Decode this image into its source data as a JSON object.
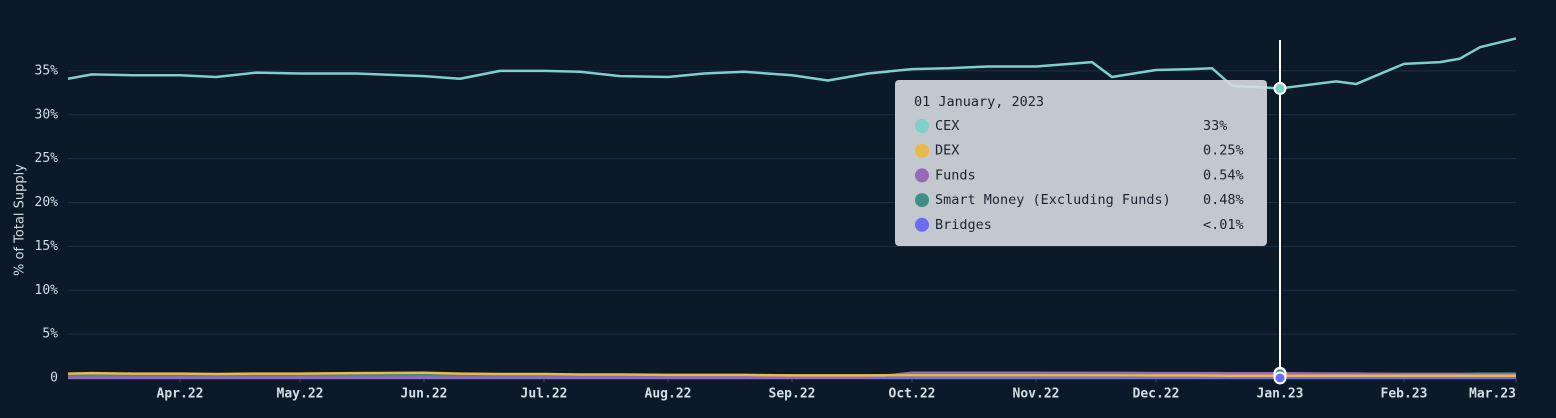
{
  "chart_data": {
    "type": "line",
    "y_label": "% of Total Supply",
    "x": [
      "2022-03-04",
      "2022-03-10",
      "2022-03-20",
      "2022-04-01",
      "2022-04-10",
      "2022-04-20",
      "2022-05-01",
      "2022-05-15",
      "2022-06-01",
      "2022-06-10",
      "2022-06-20",
      "2022-07-01",
      "2022-07-10",
      "2022-07-20",
      "2022-08-01",
      "2022-08-10",
      "2022-08-20",
      "2022-09-01",
      "2022-09-10",
      "2022-09-20",
      "2022-10-01",
      "2022-10-10",
      "2022-10-20",
      "2022-11-01",
      "2022-11-15",
      "2022-11-20",
      "2022-12-01",
      "2022-12-10",
      "2022-12-15",
      "2022-12-20",
      "2023-01-01",
      "2023-01-15",
      "2023-01-20",
      "2023-02-01",
      "2023-02-10",
      "2023-02-15",
      "2023-02-20",
      "2023-03-01"
    ],
    "series": [
      {
        "name": "CEX",
        "color": "#7fcfcc",
        "values": [
          34.1,
          34.6,
          34.5,
          34.5,
          34.3,
          34.8,
          34.7,
          34.7,
          34.4,
          34.1,
          35.0,
          35.0,
          34.9,
          34.4,
          34.3,
          34.7,
          34.9,
          34.5,
          33.9,
          34.7,
          35.2,
          35.3,
          35.5,
          35.5,
          36.0,
          34.3,
          35.1,
          35.2,
          35.3,
          33.3,
          33.0,
          33.8,
          33.5,
          35.8,
          36.0,
          36.4,
          37.7,
          38.7
        ]
      },
      {
        "name": "DEX",
        "color": "#e9b949",
        "values": [
          0.5,
          0.55,
          0.5,
          0.5,
          0.45,
          0.5,
          0.5,
          0.55,
          0.6,
          0.5,
          0.45,
          0.45,
          0.4,
          0.4,
          0.35,
          0.35,
          0.35,
          0.3,
          0.3,
          0.3,
          0.3,
          0.3,
          0.3,
          0.3,
          0.3,
          0.3,
          0.28,
          0.28,
          0.27,
          0.26,
          0.25,
          0.25,
          0.25,
          0.25,
          0.25,
          0.25,
          0.25,
          0.25
        ]
      },
      {
        "name": "Funds",
        "color": "#9a68b8",
        "values": [
          0.05,
          0.05,
          0.05,
          0.05,
          0.05,
          0.05,
          0.05,
          0.05,
          0.05,
          0.05,
          0.05,
          0.05,
          0.05,
          0.05,
          0.05,
          0.05,
          0.05,
          0.05,
          0.05,
          0.05,
          0.6,
          0.6,
          0.6,
          0.6,
          0.58,
          0.58,
          0.56,
          0.55,
          0.55,
          0.54,
          0.54,
          0.5,
          0.5,
          0.45,
          0.45,
          0.45,
          0.4,
          0.4
        ]
      },
      {
        "name": "Smart Money (Excluding Funds)",
        "color": "#3d8f86",
        "values": [
          0.3,
          0.3,
          0.3,
          0.3,
          0.3,
          0.3,
          0.3,
          0.3,
          0.3,
          0.3,
          0.3,
          0.3,
          0.3,
          0.3,
          0.3,
          0.3,
          0.3,
          0.3,
          0.3,
          0.3,
          0.35,
          0.35,
          0.35,
          0.4,
          0.4,
          0.4,
          0.45,
          0.45,
          0.48,
          0.48,
          0.48,
          0.5,
          0.5,
          0.45,
          0.45,
          0.45,
          0.5,
          0.5
        ]
      },
      {
        "name": "Bridges",
        "color": "#6a6ef0",
        "values": [
          0.004,
          0.004,
          0.004,
          0.004,
          0.004,
          0.004,
          0.004,
          0.004,
          0.004,
          0.004,
          0.004,
          0.004,
          0.004,
          0.004,
          0.004,
          0.004,
          0.004,
          0.004,
          0.004,
          0.004,
          0.004,
          0.004,
          0.004,
          0.004,
          0.004,
          0.004,
          0.004,
          0.004,
          0.004,
          0.004,
          0.004,
          0.004,
          0.004,
          0.004,
          0.004,
          0.004,
          0.004,
          0.004
        ]
      }
    ],
    "xlim": [
      "2022-03-04",
      "2023-03-01"
    ],
    "xticks": [
      {
        "value": "2022-04-01",
        "label": "Apr.22"
      },
      {
        "value": "2022-05-01",
        "label": "May.22"
      },
      {
        "value": "2022-06-01",
        "label": "Jun.22"
      },
      {
        "value": "2022-07-01",
        "label": "Jul.22"
      },
      {
        "value": "2022-08-01",
        "label": "Aug.22"
      },
      {
        "value": "2022-09-01",
        "label": "Sep.22"
      },
      {
        "value": "2022-10-01",
        "label": "Oct.22"
      },
      {
        "value": "2022-11-01",
        "label": "Nov.22"
      },
      {
        "value": "2022-12-01",
        "label": "Dec.22"
      },
      {
        "value": "2023-01-01",
        "label": "Jan.23"
      },
      {
        "value": "2023-02-01",
        "label": "Feb.23"
      },
      {
        "value": "2023-03-01",
        "label": "Mar.23"
      }
    ],
    "ylim": [
      0,
      40
    ],
    "yticks": [
      0,
      {
        "value": 5,
        "label": "5%"
      },
      {
        "value": 10,
        "label": "10%"
      },
      {
        "value": 15,
        "label": "15%"
      },
      {
        "value": 20,
        "label": "20%"
      },
      {
        "value": 25,
        "label": "25%"
      },
      {
        "value": 30,
        "label": "30%"
      },
      {
        "value": 35,
        "label": "35%"
      }
    ],
    "grid": true,
    "tooltip": {
      "title": "01 January, 2023",
      "x": "2023-01-01",
      "value_labels": [
        "33%",
        "0.25%",
        "0.54%",
        "0.48%",
        "<.01%"
      ]
    }
  }
}
